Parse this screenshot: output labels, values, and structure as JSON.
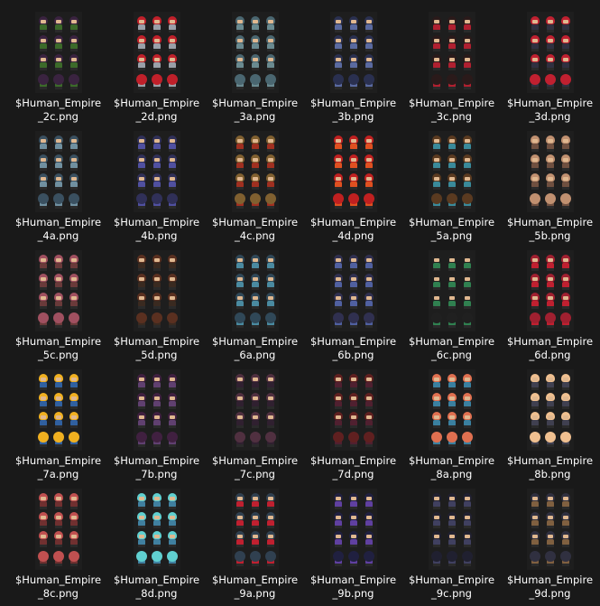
{
  "files": [
    {
      "name1": "$Human_Empire",
      "name2": "_2c.png",
      "hair": "#3a2340",
      "body": "#3c6a2a"
    },
    {
      "name1": "$Human_Empire",
      "name2": "_2d.png",
      "hair": "#c0202a",
      "body": "#9aa0a8"
    },
    {
      "name1": "$Human_Empire",
      "name2": "_3a.png",
      "hair": "#4a6670",
      "body": "#6a8a90"
    },
    {
      "name1": "$Human_Empire",
      "name2": "_3b.png",
      "hair": "#2a3050",
      "body": "#5a6aa0"
    },
    {
      "name1": "$Human_Empire",
      "name2": "_3c.png",
      "hair": "#2a1a1a",
      "body": "#b02030"
    },
    {
      "name1": "$Human_Empire",
      "name2": "_3d.png",
      "hair": "#c02030",
      "body": "#303040"
    },
    {
      "name1": "$Human_Empire",
      "name2": "_4a.png",
      "hair": "#3a5060",
      "body": "#7090a0"
    },
    {
      "name1": "$Human_Empire",
      "name2": "_4b.png",
      "hair": "#303058",
      "body": "#5050a0"
    },
    {
      "name1": "$Human_Empire",
      "name2": "_4c.png",
      "hair": "#806030",
      "body": "#a03020"
    },
    {
      "name1": "$Human_Empire",
      "name2": "_4d.png",
      "hair": "#c02020",
      "body": "#e05020"
    },
    {
      "name1": "$Human_Empire",
      "name2": "_5a.png",
      "hair": "#5a3a20",
      "body": "#3a8a9a"
    },
    {
      "name1": "$Human_Empire",
      "name2": "_5b.png",
      "hair": "#c09070",
      "body": "#705040"
    },
    {
      "name1": "$Human_Empire",
      "name2": "_5c.png",
      "hair": "#a05060",
      "body": "#6a3a3a"
    },
    {
      "name1": "$Human_Empire",
      "name2": "_5d.png",
      "hair": "#5a3020",
      "body": "#3a2a20"
    },
    {
      "name1": "$Human_Empire",
      "name2": "_6a.png",
      "hair": "#304858",
      "body": "#4a8aa0"
    },
    {
      "name1": "$Human_Empire",
      "name2": "_6b.png",
      "hair": "#303050",
      "body": "#5060a0"
    },
    {
      "name1": "$Human_Empire",
      "name2": "_6c.png",
      "hair": "#202020",
      "body": "#308050"
    },
    {
      "name1": "$Human_Empire",
      "name2": "_6d.png",
      "hair": "#a02030",
      "body": "#c02030"
    },
    {
      "name1": "$Human_Empire",
      "name2": "_7a.png",
      "hair": "#f0b020",
      "body": "#3060a0"
    },
    {
      "name1": "$Human_Empire",
      "name2": "_7b.png",
      "hair": "#402040",
      "body": "#604070"
    },
    {
      "name1": "$Human_Empire",
      "name2": "_7c.png",
      "hair": "#503040",
      "body": "#302030"
    },
    {
      "name1": "$Human_Empire",
      "name2": "_7d.png",
      "hair": "#602020",
      "body": "#502030"
    },
    {
      "name1": "$Human_Empire",
      "name2": "_8a.png",
      "hair": "#e07050",
      "body": "#3a80a0"
    },
    {
      "name1": "$Human_Empire",
      "name2": "_8b.png",
      "hair": "#f0c090",
      "body": "#404050"
    },
    {
      "name1": "$Human_Empire",
      "name2": "_8c.png",
      "hair": "#c05050",
      "body": "#703030"
    },
    {
      "name1": "$Human_Empire",
      "name2": "_8d.png",
      "hair": "#60d0d0",
      "body": "#4080a0"
    },
    {
      "name1": "$Human_Empire",
      "name2": "_9a.png",
      "hair": "#304050",
      "body": "#c02030"
    },
    {
      "name1": "$Human_Empire",
      "name2": "_9b.png",
      "hair": "#202040",
      "body": "#6040a0"
    },
    {
      "name1": "$Human_Empire",
      "name2": "_9c.png",
      "hair": "#202030",
      "body": "#404060"
    },
    {
      "name1": "$Human_Empire",
      "name2": "_9d.png",
      "hair": "#303040",
      "body": "#806040"
    }
  ]
}
